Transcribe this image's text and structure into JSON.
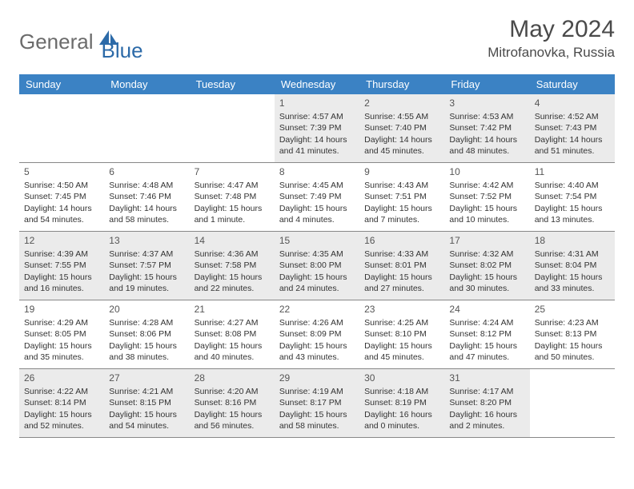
{
  "brand": {
    "part1": "General",
    "part2": "Blue"
  },
  "title": "May 2024",
  "location": "Mitrofanovka, Russia",
  "colors": {
    "header_bg": "#3b82c4",
    "header_text": "#ffffff",
    "shade_bg": "#ebebeb",
    "border": "#888888",
    "logo_gray": "#6b6b6b",
    "logo_blue": "#2c6aa8"
  },
  "day_names": [
    "Sunday",
    "Monday",
    "Tuesday",
    "Wednesday",
    "Thursday",
    "Friday",
    "Saturday"
  ],
  "weeks": [
    [
      {
        "day": "",
        "sunrise": "",
        "sunset": "",
        "daylight": "",
        "shade": false
      },
      {
        "day": "",
        "sunrise": "",
        "sunset": "",
        "daylight": "",
        "shade": false
      },
      {
        "day": "",
        "sunrise": "",
        "sunset": "",
        "daylight": "",
        "shade": false
      },
      {
        "day": "1",
        "sunrise": "Sunrise: 4:57 AM",
        "sunset": "Sunset: 7:39 PM",
        "daylight": "Daylight: 14 hours and 41 minutes.",
        "shade": true
      },
      {
        "day": "2",
        "sunrise": "Sunrise: 4:55 AM",
        "sunset": "Sunset: 7:40 PM",
        "daylight": "Daylight: 14 hours and 45 minutes.",
        "shade": true
      },
      {
        "day": "3",
        "sunrise": "Sunrise: 4:53 AM",
        "sunset": "Sunset: 7:42 PM",
        "daylight": "Daylight: 14 hours and 48 minutes.",
        "shade": true
      },
      {
        "day": "4",
        "sunrise": "Sunrise: 4:52 AM",
        "sunset": "Sunset: 7:43 PM",
        "daylight": "Daylight: 14 hours and 51 minutes.",
        "shade": true
      }
    ],
    [
      {
        "day": "5",
        "sunrise": "Sunrise: 4:50 AM",
        "sunset": "Sunset: 7:45 PM",
        "daylight": "Daylight: 14 hours and 54 minutes.",
        "shade": false
      },
      {
        "day": "6",
        "sunrise": "Sunrise: 4:48 AM",
        "sunset": "Sunset: 7:46 PM",
        "daylight": "Daylight: 14 hours and 58 minutes.",
        "shade": false
      },
      {
        "day": "7",
        "sunrise": "Sunrise: 4:47 AM",
        "sunset": "Sunset: 7:48 PM",
        "daylight": "Daylight: 15 hours and 1 minute.",
        "shade": false
      },
      {
        "day": "8",
        "sunrise": "Sunrise: 4:45 AM",
        "sunset": "Sunset: 7:49 PM",
        "daylight": "Daylight: 15 hours and 4 minutes.",
        "shade": false
      },
      {
        "day": "9",
        "sunrise": "Sunrise: 4:43 AM",
        "sunset": "Sunset: 7:51 PM",
        "daylight": "Daylight: 15 hours and 7 minutes.",
        "shade": false
      },
      {
        "day": "10",
        "sunrise": "Sunrise: 4:42 AM",
        "sunset": "Sunset: 7:52 PM",
        "daylight": "Daylight: 15 hours and 10 minutes.",
        "shade": false
      },
      {
        "day": "11",
        "sunrise": "Sunrise: 4:40 AM",
        "sunset": "Sunset: 7:54 PM",
        "daylight": "Daylight: 15 hours and 13 minutes.",
        "shade": false
      }
    ],
    [
      {
        "day": "12",
        "sunrise": "Sunrise: 4:39 AM",
        "sunset": "Sunset: 7:55 PM",
        "daylight": "Daylight: 15 hours and 16 minutes.",
        "shade": true
      },
      {
        "day": "13",
        "sunrise": "Sunrise: 4:37 AM",
        "sunset": "Sunset: 7:57 PM",
        "daylight": "Daylight: 15 hours and 19 minutes.",
        "shade": true
      },
      {
        "day": "14",
        "sunrise": "Sunrise: 4:36 AM",
        "sunset": "Sunset: 7:58 PM",
        "daylight": "Daylight: 15 hours and 22 minutes.",
        "shade": true
      },
      {
        "day": "15",
        "sunrise": "Sunrise: 4:35 AM",
        "sunset": "Sunset: 8:00 PM",
        "daylight": "Daylight: 15 hours and 24 minutes.",
        "shade": true
      },
      {
        "day": "16",
        "sunrise": "Sunrise: 4:33 AM",
        "sunset": "Sunset: 8:01 PM",
        "daylight": "Daylight: 15 hours and 27 minutes.",
        "shade": true
      },
      {
        "day": "17",
        "sunrise": "Sunrise: 4:32 AM",
        "sunset": "Sunset: 8:02 PM",
        "daylight": "Daylight: 15 hours and 30 minutes.",
        "shade": true
      },
      {
        "day": "18",
        "sunrise": "Sunrise: 4:31 AM",
        "sunset": "Sunset: 8:04 PM",
        "daylight": "Daylight: 15 hours and 33 minutes.",
        "shade": true
      }
    ],
    [
      {
        "day": "19",
        "sunrise": "Sunrise: 4:29 AM",
        "sunset": "Sunset: 8:05 PM",
        "daylight": "Daylight: 15 hours and 35 minutes.",
        "shade": false
      },
      {
        "day": "20",
        "sunrise": "Sunrise: 4:28 AM",
        "sunset": "Sunset: 8:06 PM",
        "daylight": "Daylight: 15 hours and 38 minutes.",
        "shade": false
      },
      {
        "day": "21",
        "sunrise": "Sunrise: 4:27 AM",
        "sunset": "Sunset: 8:08 PM",
        "daylight": "Daylight: 15 hours and 40 minutes.",
        "shade": false
      },
      {
        "day": "22",
        "sunrise": "Sunrise: 4:26 AM",
        "sunset": "Sunset: 8:09 PM",
        "daylight": "Daylight: 15 hours and 43 minutes.",
        "shade": false
      },
      {
        "day": "23",
        "sunrise": "Sunrise: 4:25 AM",
        "sunset": "Sunset: 8:10 PM",
        "daylight": "Daylight: 15 hours and 45 minutes.",
        "shade": false
      },
      {
        "day": "24",
        "sunrise": "Sunrise: 4:24 AM",
        "sunset": "Sunset: 8:12 PM",
        "daylight": "Daylight: 15 hours and 47 minutes.",
        "shade": false
      },
      {
        "day": "25",
        "sunrise": "Sunrise: 4:23 AM",
        "sunset": "Sunset: 8:13 PM",
        "daylight": "Daylight: 15 hours and 50 minutes.",
        "shade": false
      }
    ],
    [
      {
        "day": "26",
        "sunrise": "Sunrise: 4:22 AM",
        "sunset": "Sunset: 8:14 PM",
        "daylight": "Daylight: 15 hours and 52 minutes.",
        "shade": true
      },
      {
        "day": "27",
        "sunrise": "Sunrise: 4:21 AM",
        "sunset": "Sunset: 8:15 PM",
        "daylight": "Daylight: 15 hours and 54 minutes.",
        "shade": true
      },
      {
        "day": "28",
        "sunrise": "Sunrise: 4:20 AM",
        "sunset": "Sunset: 8:16 PM",
        "daylight": "Daylight: 15 hours and 56 minutes.",
        "shade": true
      },
      {
        "day": "29",
        "sunrise": "Sunrise: 4:19 AM",
        "sunset": "Sunset: 8:17 PM",
        "daylight": "Daylight: 15 hours and 58 minutes.",
        "shade": true
      },
      {
        "day": "30",
        "sunrise": "Sunrise: 4:18 AM",
        "sunset": "Sunset: 8:19 PM",
        "daylight": "Daylight: 16 hours and 0 minutes.",
        "shade": true
      },
      {
        "day": "31",
        "sunrise": "Sunrise: 4:17 AM",
        "sunset": "Sunset: 8:20 PM",
        "daylight": "Daylight: 16 hours and 2 minutes.",
        "shade": true
      },
      {
        "day": "",
        "sunrise": "",
        "sunset": "",
        "daylight": "",
        "shade": false
      }
    ]
  ]
}
